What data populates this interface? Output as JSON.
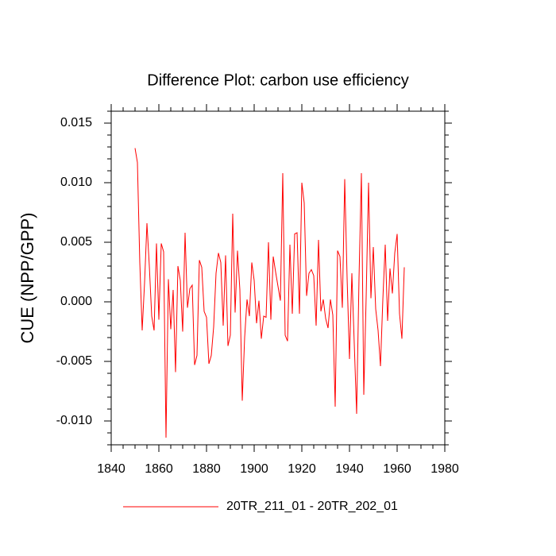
{
  "chart_data": {
    "type": "line",
    "title": "Difference Plot: carbon use efficiency",
    "y_label": "CUE  (NPP/GPP)",
    "x": [
      1850,
      1851,
      1852,
      1853,
      1854,
      1855,
      1856,
      1857,
      1858,
      1859,
      1860,
      1861,
      1862,
      1863,
      1864,
      1865,
      1866,
      1867,
      1868,
      1869,
      1870,
      1871,
      1872,
      1873,
      1874,
      1875,
      1876,
      1877,
      1878,
      1879,
      1880,
      1881,
      1882,
      1883,
      1884,
      1885,
      1886,
      1887,
      1888,
      1889,
      1890,
      1891,
      1892,
      1893,
      1894,
      1895,
      1896,
      1897,
      1898,
      1899,
      1900,
      1901,
      1902,
      1903,
      1904,
      1905,
      1906,
      1907,
      1908,
      1909,
      1910,
      1911,
      1912,
      1913,
      1914,
      1915,
      1916,
      1917,
      1918,
      1919,
      1920,
      1921,
      1922,
      1923,
      1924,
      1925,
      1926,
      1927,
      1928,
      1929,
      1930,
      1931,
      1932,
      1933,
      1934,
      1935,
      1936,
      1937,
      1938,
      1939,
      1940,
      1941,
      1942,
      1943,
      1944,
      1945,
      1946,
      1947,
      1948,
      1949,
      1950,
      1951,
      1952,
      1953,
      1954,
      1955,
      1956,
      1957,
      1958,
      1959,
      1960,
      1961,
      1962,
      1963
    ],
    "series": [
      {
        "name": "20TR_211_01 - 20TR_202_01",
        "color": "#ff0000",
        "values": [
          0.0129,
          0.0117,
          0.0033,
          -0.0024,
          0.0016,
          0.0066,
          0.003,
          -0.0012,
          -0.0024,
          0.0049,
          -0.0015,
          0.0049,
          0.0042,
          -0.0114,
          0.0019,
          -0.0023,
          0.001,
          -0.0059,
          0.003,
          0.0018,
          -0.0025,
          0.0058,
          -0.0005,
          0.0011,
          0.0014,
          -0.0053,
          -0.0045,
          0.0035,
          0.0029,
          -0.0008,
          -0.0013,
          -0.0052,
          -0.0045,
          -0.0021,
          0.0024,
          0.0041,
          0.0033,
          -0.002,
          0.0039,
          -0.0037,
          -0.0028,
          0.0074,
          -0.0009,
          0.0043,
          0.001,
          -0.0083,
          -0.003,
          0.0002,
          -0.0012,
          0.0033,
          0.0018,
          -0.0018,
          0.0001,
          -0.0031,
          -0.0012,
          -0.0013,
          0.005,
          -0.0015,
          0.0038,
          0.0025,
          0.0013,
          0.0001,
          0.0108,
          -0.0028,
          -0.0033,
          0.0048,
          -0.001,
          0.0057,
          0.0058,
          -0.001,
          0.01,
          0.0083,
          0.0005,
          0.0024,
          0.0027,
          0.0022,
          -0.002,
          0.0052,
          -0.0008,
          0.0002,
          -0.0014,
          -0.0022,
          0.0002,
          -0.0011,
          -0.0088,
          0.0043,
          0.0038,
          -0.0005,
          0.0103,
          0.002,
          -0.0048,
          0.0024,
          -0.0035,
          -0.0094,
          0.002,
          0.0108,
          -0.0078,
          0.0004,
          0.01,
          0.0003,
          0.0046,
          -0.0006,
          -0.0024,
          -0.0054,
          0.0002,
          0.0048,
          -0.0016,
          0.0028,
          0.0007,
          0.0041,
          0.0057,
          -0.001,
          -0.0031,
          0.0029
        ]
      }
    ],
    "xlim": [
      1840,
      1980
    ],
    "xticks": [
      1840,
      1860,
      1880,
      1900,
      1920,
      1940,
      1960,
      1980
    ],
    "ylim": [
      -0.012,
      0.016
    ],
    "yticks": [
      {
        "value": -0.01,
        "label": "-0.010"
      },
      -0.005,
      {
        "value": 0,
        "label": "0.000"
      },
      0.005,
      {
        "value": 0.01,
        "label": "0.010"
      },
      0.015
    ],
    "legend": "bottom"
  }
}
